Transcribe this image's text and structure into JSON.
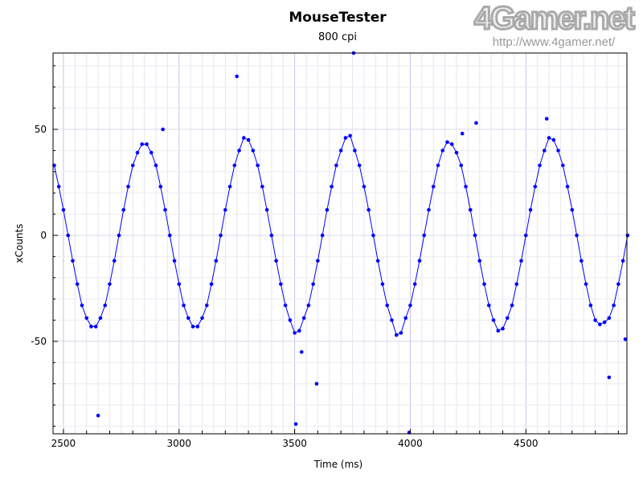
{
  "chart_data": {
    "type": "scatter",
    "title": "MouseTester",
    "subtitle": "800 cpi",
    "xlabel": "Time (ms)",
    "ylabel": "xCounts",
    "xlim": [
      2455,
      4937
    ],
    "ylim": [
      -93.6,
      86
    ],
    "xticks": [
      2500,
      3000,
      3500,
      4000,
      4500
    ],
    "yticks": [
      50,
      0,
      -50
    ],
    "grid": true,
    "series": [
      {
        "name": "xCounts",
        "color": "#0000ff",
        "x_start": 2460,
        "x_step": 20,
        "y": [
          33,
          23,
          12,
          0,
          -12,
          -23,
          -33,
          -39,
          -43,
          -43,
          -39,
          -33,
          -23,
          -12,
          0,
          12,
          23,
          33,
          39,
          43,
          43,
          39,
          33,
          23,
          12,
          0,
          -12,
          -23,
          -33,
          -39,
          -43,
          -43,
          -39,
          -33,
          -23,
          -12,
          0,
          12,
          23,
          33,
          40,
          46,
          45,
          40,
          33,
          23,
          12,
          0,
          -12,
          -23,
          -33,
          -40,
          -46,
          -45,
          -39,
          -33,
          -23,
          -12,
          0,
          12,
          23,
          33,
          40,
          46,
          47,
          40,
          33,
          23,
          12,
          0,
          -12,
          -23,
          -33,
          -40,
          -47,
          -46,
          -39,
          -33,
          -23,
          -12,
          0,
          12,
          23,
          33,
          40,
          44,
          43,
          39,
          33,
          23,
          12,
          0,
          -12,
          -23,
          -33,
          -40,
          -45,
          -44,
          -39,
          -33,
          -23,
          -12,
          0,
          12,
          23,
          33,
          40,
          46,
          45,
          40,
          33,
          23,
          12,
          0,
          -12,
          -23,
          -33,
          -40,
          -42,
          -41,
          -39,
          -33,
          -23,
          -12,
          0
        ]
      }
    ],
    "outliers": [
      [
        2650,
        -85
      ],
      [
        2930,
        50
      ],
      [
        3250,
        75
      ],
      [
        3505,
        -89
      ],
      [
        3530,
        -55
      ],
      [
        3595,
        -70
      ],
      [
        3755,
        86
      ],
      [
        3995,
        -93
      ],
      [
        4225,
        48
      ],
      [
        4285,
        53
      ],
      [
        4590,
        55
      ],
      [
        4860,
        -67
      ],
      [
        4930,
        -49
      ]
    ]
  },
  "watermark": {
    "logo": "4Gamer.net",
    "url": "http://www.4gamer.net/"
  }
}
